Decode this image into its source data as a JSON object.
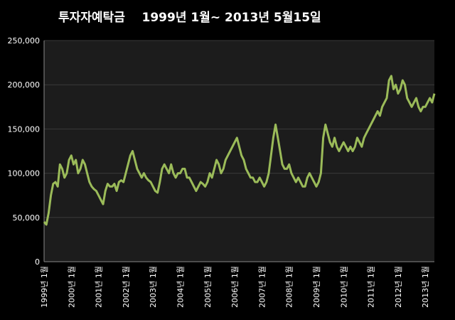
{
  "chart_data": {
    "type": "line",
    "title": "투자자예탁금    1999년 1월~ 2013년 5월15일",
    "categories": [
      "1999년 1월",
      null,
      null,
      null,
      null,
      null,
      null,
      null,
      null,
      null,
      null,
      null,
      "2000년 1월",
      null,
      null,
      null,
      null,
      null,
      null,
      null,
      null,
      null,
      null,
      null,
      "2001년 1월",
      null,
      null,
      null,
      null,
      null,
      null,
      null,
      null,
      null,
      null,
      null,
      "2002년 1월",
      null,
      null,
      null,
      null,
      null,
      null,
      null,
      null,
      null,
      null,
      null,
      "2003년 1월",
      null,
      null,
      null,
      null,
      null,
      null,
      null,
      null,
      null,
      null,
      null,
      "2004년 1월",
      null,
      null,
      null,
      null,
      null,
      null,
      null,
      null,
      null,
      null,
      null,
      "2005년 1월",
      null,
      null,
      null,
      null,
      null,
      null,
      null,
      null,
      null,
      null,
      null,
      "2006년 1월",
      null,
      null,
      null,
      null,
      null,
      null,
      null,
      null,
      null,
      null,
      null,
      "2007년 1월",
      null,
      null,
      null,
      null,
      null,
      null,
      null,
      null,
      null,
      null,
      null,
      "2008년 1월",
      null,
      null,
      null,
      null,
      null,
      null,
      null,
      null,
      null,
      null,
      null,
      "2009년 1월",
      null,
      null,
      null,
      null,
      null,
      null,
      null,
      null,
      null,
      null,
      null,
      "2010년 1월",
      null,
      null,
      null,
      null,
      null,
      null,
      null,
      null,
      null,
      null,
      null,
      "2011년 1월",
      null,
      null,
      null,
      null,
      null,
      null,
      null,
      null,
      null,
      null,
      null,
      "2012년 1월",
      null,
      null,
      null,
      null,
      null,
      null,
      null,
      null,
      null,
      null,
      null,
      "2013년 1월",
      null,
      null,
      null,
      null
    ],
    "series": [
      {
        "color": "#9bbb59",
        "values": [
          45000,
          42000,
          55000,
          75000,
          88000,
          90000,
          85000,
          110000,
          105000,
          95000,
          100000,
          115000,
          120000,
          110000,
          115000,
          100000,
          105000,
          115000,
          110000,
          100000,
          90000,
          85000,
          82000,
          80000,
          75000,
          70000,
          65000,
          80000,
          88000,
          85000,
          85000,
          88000,
          80000,
          90000,
          92000,
          90000,
          100000,
          110000,
          120000,
          125000,
          115000,
          105000,
          100000,
          95000,
          100000,
          95000,
          92000,
          90000,
          85000,
          80000,
          78000,
          90000,
          105000,
          110000,
          105000,
          100000,
          110000,
          100000,
          95000,
          100000,
          100000,
          105000,
          105000,
          95000,
          95000,
          90000,
          85000,
          80000,
          85000,
          90000,
          88000,
          85000,
          90000,
          100000,
          95000,
          105000,
          115000,
          110000,
          100000,
          105000,
          115000,
          120000,
          125000,
          130000,
          135000,
          140000,
          130000,
          120000,
          115000,
          105000,
          100000,
          95000,
          95000,
          90000,
          90000,
          95000,
          90000,
          85000,
          90000,
          100000,
          120000,
          140000,
          155000,
          140000,
          125000,
          110000,
          105000,
          105000,
          110000,
          100000,
          95000,
          90000,
          95000,
          90000,
          85000,
          85000,
          95000,
          100000,
          95000,
          90000,
          85000,
          90000,
          100000,
          140000,
          155000,
          145000,
          135000,
          130000,
          140000,
          130000,
          125000,
          130000,
          135000,
          130000,
          125000,
          130000,
          125000,
          130000,
          140000,
          135000,
          130000,
          140000,
          145000,
          150000,
          155000,
          160000,
          165000,
          170000,
          165000,
          175000,
          180000,
          185000,
          205000,
          210000,
          195000,
          200000,
          190000,
          195000,
          205000,
          200000,
          185000,
          180000,
          175000,
          180000,
          185000,
          175000,
          170000,
          175000,
          175000,
          180000,
          185000,
          180000,
          190000
        ]
      }
    ],
    "ylim": [
      0,
      250000
    ],
    "yticks": [
      0,
      {
        "value": 50000,
        "label": "50,000"
      },
      {
        "value": 100000,
        "label": "100,000"
      },
      {
        "value": 150000,
        "label": "150,000"
      },
      {
        "value": 200000,
        "label": "200,000"
      },
      {
        "value": 250000,
        "label": "250,000"
      }
    ],
    "grid": true
  }
}
